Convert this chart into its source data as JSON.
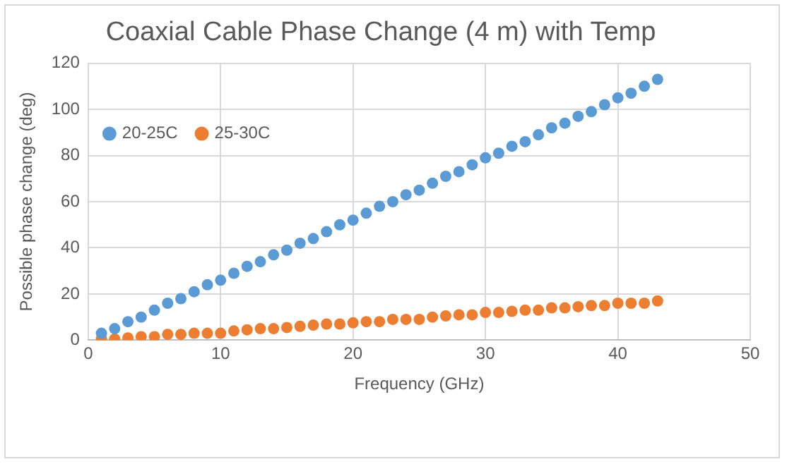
{
  "chart_data": {
    "type": "scatter",
    "title": "Coaxial Cable Phase Change (4 m) with Temp",
    "xlabel": "Frequency (GHz)",
    "ylabel": "Possible phase change (deg)",
    "x": [
      1,
      2,
      3,
      4,
      5,
      6,
      7,
      8,
      9,
      10,
      11,
      12,
      13,
      14,
      15,
      16,
      17,
      18,
      19,
      20,
      21,
      22,
      23,
      24,
      25,
      26,
      27,
      28,
      29,
      30,
      31,
      32,
      33,
      34,
      35,
      36,
      37,
      38,
      39,
      40,
      41,
      42,
      43
    ],
    "series": [
      {
        "name": "20-25C",
        "color": "#5b9bd5",
        "values": [
          3,
          5,
          8,
          10,
          13,
          16,
          18,
          21,
          24,
          26,
          29,
          32,
          34,
          37,
          39,
          42,
          44,
          47,
          50,
          52,
          55,
          58,
          60,
          63,
          65,
          68,
          71,
          73,
          76,
          79,
          81,
          84,
          86,
          89,
          92,
          94,
          97,
          99,
          102,
          105,
          107,
          110,
          113
        ]
      },
      {
        "name": "25-30C",
        "color": "#ed7d31",
        "values": [
          0.5,
          0.5,
          1,
          1.5,
          1.5,
          2.5,
          2.5,
          3,
          3,
          3,
          4,
          4.5,
          5,
          5,
          5.5,
          6,
          6.5,
          7,
          7,
          7.5,
          8,
          8,
          9,
          9,
          9,
          10,
          10.5,
          11,
          11,
          12,
          12,
          12.5,
          13,
          13,
          14,
          14,
          14.5,
          15,
          15,
          16,
          16,
          16,
          17
        ]
      }
    ],
    "xlim": [
      0,
      50
    ],
    "xticks": [
      0,
      10,
      20,
      30,
      40,
      50
    ],
    "ylim": [
      0,
      120
    ],
    "yticks": [
      0,
      20,
      40,
      60,
      80,
      100,
      120
    ],
    "grid": true,
    "legend": "top left",
    "marker": "circle"
  }
}
